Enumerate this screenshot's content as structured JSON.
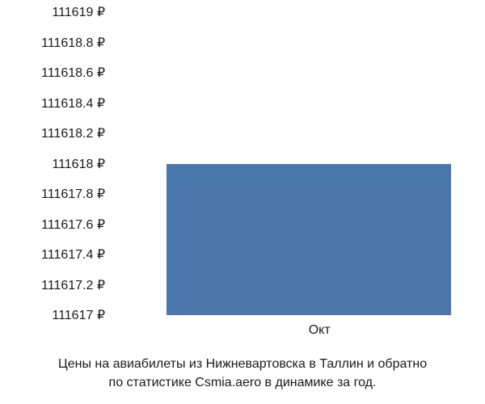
{
  "chart": {
    "type": "bar",
    "categories": [
      "Окт"
    ],
    "values": [
      111618
    ],
    "bar_color": "#4a77ab",
    "background_color": "#ffffff",
    "text_color": "#1a1a1a",
    "ylim": [
      111617,
      111619
    ],
    "ytick_step": 0.2,
    "yticks": [
      {
        "value": 111619,
        "label": "111619 ₽"
      },
      {
        "value": 111618.8,
        "label": "111618.8 ₽"
      },
      {
        "value": 111618.6,
        "label": "111618.6 ₽"
      },
      {
        "value": 111618.4,
        "label": "111618.4 ₽"
      },
      {
        "value": 111618.2,
        "label": "111618.2 ₽"
      },
      {
        "value": 111618,
        "label": "111618 ₽"
      },
      {
        "value": 111617.8,
        "label": "111617.8 ₽"
      },
      {
        "value": 111617.6,
        "label": "111617.6 ₽"
      },
      {
        "value": 111617.4,
        "label": "111617.4 ₽"
      },
      {
        "value": 111617.2,
        "label": "111617.2 ₽"
      },
      {
        "value": 111617,
        "label": "111617 ₽"
      }
    ],
    "label_fontsize": 16,
    "caption_fontsize": 16,
    "bar_width": 0.8
  },
  "caption": {
    "line1": "Цены на авиабилеты из Нижневартовска в Таллин и обратно",
    "line2": "по статистике Csmia.aero в динамике за год."
  }
}
